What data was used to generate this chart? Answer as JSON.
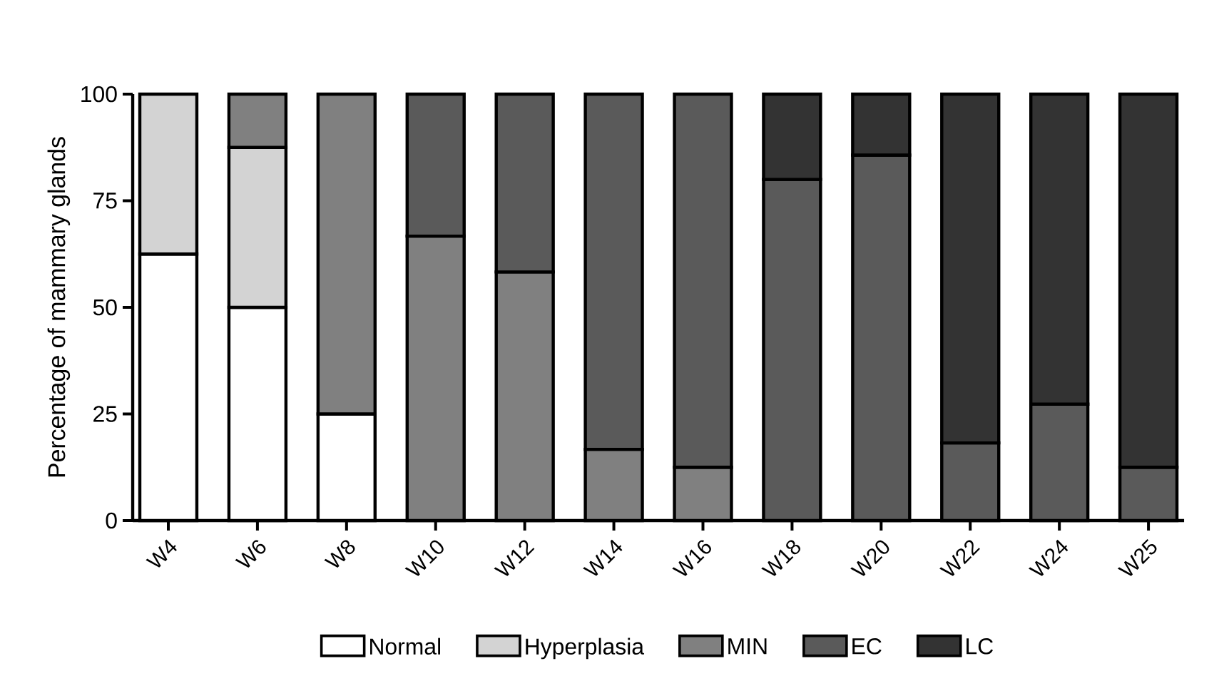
{
  "chart_data": {
    "type": "bar",
    "stacked": true,
    "ylabel": "Percentage of mammary glands",
    "categories": [
      "W4",
      "W6",
      "W8",
      "W10",
      "W12",
      "W14",
      "W16",
      "W18",
      "W20",
      "W22",
      "W24",
      "W25"
    ],
    "series": [
      {
        "name": "Normal",
        "color": "#ffffff",
        "values": [
          62.5,
          50,
          25,
          null,
          null,
          null,
          null,
          null,
          null,
          null,
          null,
          null
        ]
      },
      {
        "name": "Hyperplasia",
        "color": "#d3d3d3",
        "values": [
          37.5,
          37.5,
          null,
          null,
          null,
          null,
          null,
          null,
          null,
          null,
          null,
          null
        ]
      },
      {
        "name": "MIN",
        "color": "#808080",
        "values": [
          null,
          12.5,
          75,
          66.7,
          58.3,
          16.7,
          12.5,
          null,
          null,
          null,
          null,
          null
        ]
      },
      {
        "name": "EC",
        "color": "#5a5a5a",
        "values": [
          null,
          null,
          null,
          33.3,
          41.7,
          83.3,
          87.5,
          80,
          85.7,
          18.2,
          27.3,
          12.5
        ]
      },
      {
        "name": "LC",
        "color": "#333333",
        "values": [
          null,
          null,
          null,
          null,
          null,
          null,
          null,
          20,
          14.3,
          81.8,
          72.7,
          87.5
        ]
      }
    ],
    "ylim": [
      0,
      100
    ],
    "yticks": [
      0,
      25,
      50,
      75,
      100
    ],
    "grid": false,
    "legend": "bottom"
  }
}
